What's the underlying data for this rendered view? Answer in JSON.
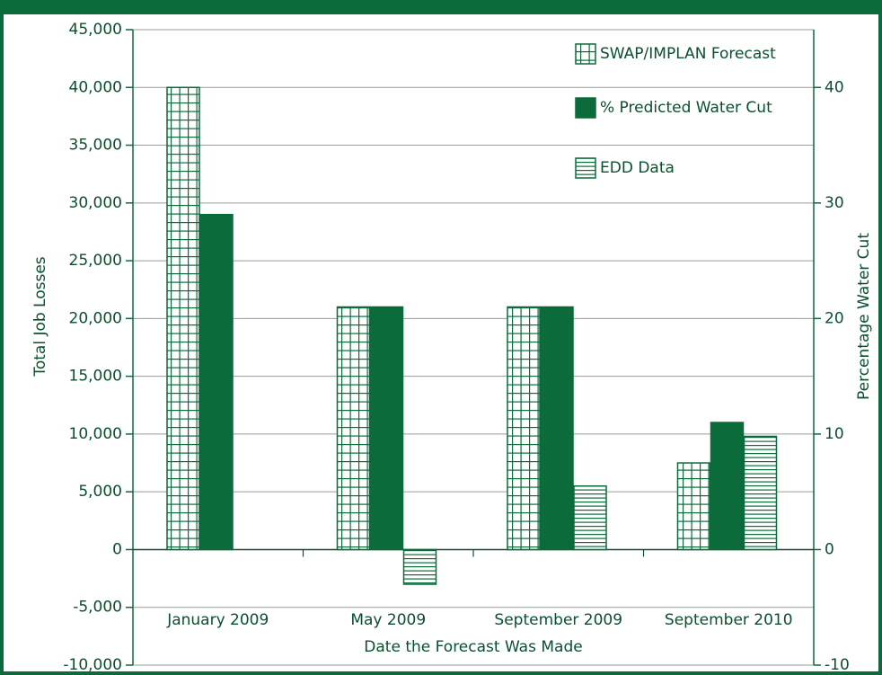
{
  "chart_data": {
    "type": "bar",
    "categories": [
      "January 2009",
      "May 2009",
      "September 2009",
      "September 2010"
    ],
    "xlabel": "Date the Forecast Was Made",
    "ylabel": "Total Job Losses",
    "y2label": "Percentage Water Cut",
    "ylim": [
      -10000,
      45000
    ],
    "yticks": [
      {
        "value": -10000,
        "label": "-10,000"
      },
      {
        "value": -5000,
        "label": "-5,000"
      },
      0,
      {
        "value": 5000,
        "label": "5,000"
      },
      {
        "value": 10000,
        "label": "10,000"
      },
      {
        "value": 15000,
        "label": "15,000"
      },
      {
        "value": 20000,
        "label": "20,000"
      },
      {
        "value": 25000,
        "label": "25,000"
      },
      {
        "value": 30000,
        "label": "30,000"
      },
      {
        "value": 35000,
        "label": "35,000"
      },
      {
        "value": 40000,
        "label": "40,000"
      },
      {
        "value": 45000,
        "label": "45,000"
      }
    ],
    "y2lim": [
      -10,
      45
    ],
    "y2ticks": [
      -10,
      0,
      10,
      20,
      30,
      40
    ],
    "grid": true,
    "legend": "upper right",
    "series": [
      {
        "name": "SWAP/IMPLAN Forecast",
        "color": "#0b6b3a",
        "pattern": "grid",
        "values": [
          40000,
          21000,
          21000,
          7500
        ]
      },
      {
        "name": "% Predicted Water Cut",
        "color": "#0b6b3a",
        "pattern": "solid",
        "axis": "y2",
        "values": [
          29,
          21,
          21,
          11
        ]
      },
      {
        "name": "EDD Data",
        "color": "#0b6b3a",
        "pattern": "hlines",
        "values": [
          null,
          -3000,
          5500,
          9800
        ]
      }
    ]
  }
}
